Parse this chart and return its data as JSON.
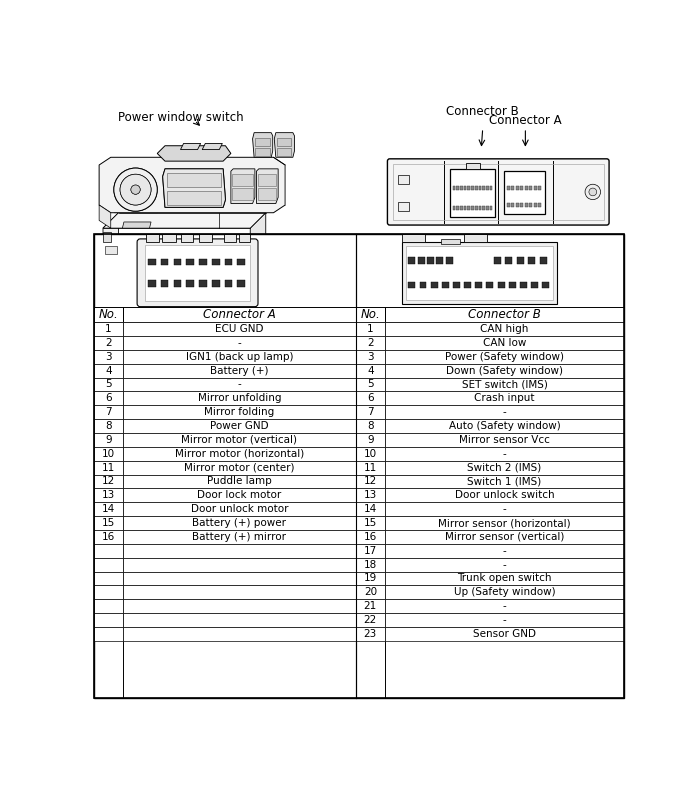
{
  "title_pws": "Power window switch",
  "title_conn_b": "Connector B",
  "title_conn_a": "Connector A",
  "header_no": "No.",
  "header_conn_a": "Connector A",
  "header_no2": "No.",
  "header_conn_b": "Connector B",
  "connector_a_rows": [
    [
      "1",
      "ECU GND"
    ],
    [
      "2",
      "-"
    ],
    [
      "3",
      "IGN1 (back up lamp)"
    ],
    [
      "4",
      "Battery (+)"
    ],
    [
      "5",
      "-"
    ],
    [
      "6",
      "Mirror unfolding"
    ],
    [
      "7",
      "Mirror folding"
    ],
    [
      "8",
      "Power GND"
    ],
    [
      "9",
      "Mirror motor (vertical)"
    ],
    [
      "10",
      "Mirror motor (horizontal)"
    ],
    [
      "11",
      "Mirror motor (center)"
    ],
    [
      "12",
      "Puddle lamp"
    ],
    [
      "13",
      "Door lock motor"
    ],
    [
      "14",
      "Door unlock motor"
    ],
    [
      "15",
      "Battery (+) power"
    ],
    [
      "16",
      "Battery (+) mirror"
    ]
  ],
  "connector_b_rows": [
    [
      "1",
      "CAN high"
    ],
    [
      "2",
      "CAN low"
    ],
    [
      "3",
      "Power (Safety window)"
    ],
    [
      "4",
      "Down (Safety window)"
    ],
    [
      "5",
      "SET switch (IMS)"
    ],
    [
      "6",
      "Crash input"
    ],
    [
      "7",
      "-"
    ],
    [
      "8",
      "Auto (Safety window)"
    ],
    [
      "9",
      "Mirror sensor Vcc"
    ],
    [
      "10",
      "-"
    ],
    [
      "11",
      "Switch 2 (IMS)"
    ],
    [
      "12",
      "Switch 1 (IMS)"
    ],
    [
      "13",
      "Door unlock switch"
    ],
    [
      "14",
      "-"
    ],
    [
      "15",
      "Mirror sensor (horizontal)"
    ],
    [
      "16",
      "Mirror sensor (vertical)"
    ],
    [
      "17",
      "-"
    ],
    [
      "18",
      "-"
    ],
    [
      "19",
      "Trunk open switch"
    ],
    [
      "20",
      "Up (Safety window)"
    ],
    [
      "21",
      "-"
    ],
    [
      "22",
      "-"
    ],
    [
      "23",
      "Sensor GND"
    ]
  ],
  "bg_color": "#ffffff",
  "font_size": 7.5,
  "header_font_size": 8.5
}
